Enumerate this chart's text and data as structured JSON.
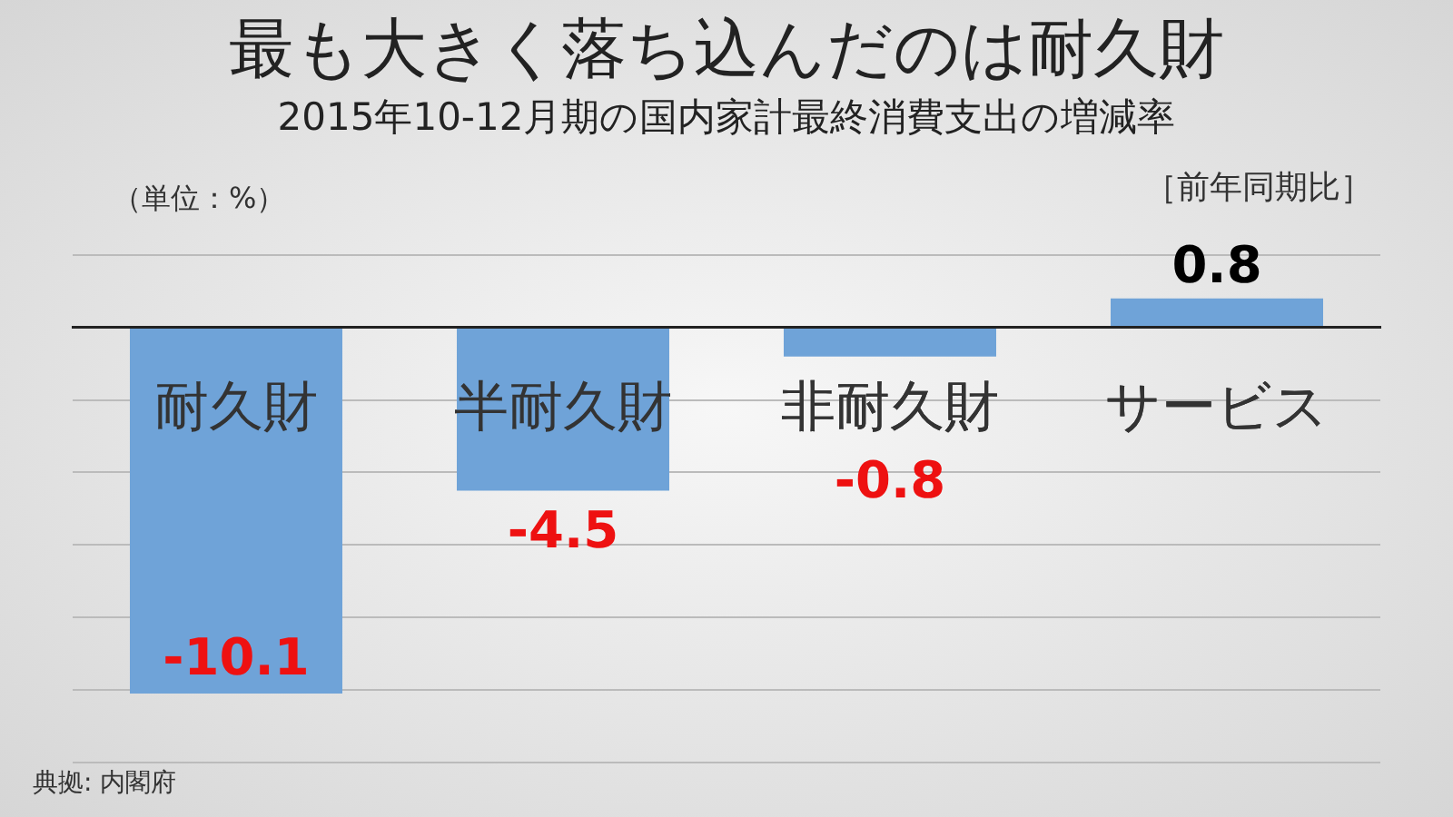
{
  "chart_data": {
    "type": "bar",
    "title": "最も大きく落ち込んだのは耐久財",
    "subtitle": "2015年10-12月期の国内家計最終消費支出の増減率",
    "categories": [
      "耐久財",
      "半耐久財",
      "非耐久財",
      "サービス"
    ],
    "values": [
      -10.1,
      -4.5,
      -0.8,
      0.8
    ],
    "color": "#6fa3d8",
    "ylim": [
      -12,
      2
    ],
    "yticks": [
      -12,
      -10,
      -8,
      -6,
      -4,
      -2,
      0,
      2
    ],
    "grid": "y",
    "tick_labels": "x",
    "data_labels": true,
    "legend": false,
    "annotations": [
      "（単位：%）",
      "［前年同期比］",
      "典拠: 内閣府"
    ]
  }
}
